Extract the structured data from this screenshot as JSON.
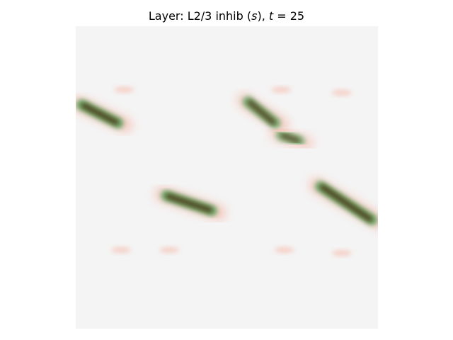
{
  "chart_data": {
    "type": "heatmap",
    "title": {
      "prefix": "Layer: L2/3 inhib (",
      "var": "s",
      "mid": "), ",
      "tvar": "t",
      "eq": " = 25"
    },
    "axes_visible": false,
    "colors": {
      "background": "#f4f4f4",
      "dark_spot": "#4a3210",
      "green_trace": "#2f9a45",
      "green_glow": "#8fd08f",
      "pink_glow": "#f6a08a"
    },
    "vertical_traces": [
      {
        "x": 0.12,
        "y_start": 0.22,
        "y_end": 0.75,
        "intensity": 0.9
      },
      {
        "x": 0.3,
        "y_start": 0.18,
        "y_end": 0.76,
        "intensity": 1.0
      },
      {
        "x": 0.66,
        "y_start": 0.22,
        "y_end": 0.77,
        "intensity": 0.85
      },
      {
        "x": 0.69,
        "y_start": 0.22,
        "y_end": 0.7,
        "intensity": 0.8
      },
      {
        "x": 0.85,
        "y_start": 0.21,
        "y_end": 0.77,
        "intensity": 1.0
      }
    ],
    "diagonal_blobs": [
      {
        "x1": 0.02,
        "y1": 0.26,
        "x2": 0.14,
        "y2": 0.32,
        "intensity": 1.0
      },
      {
        "x1": 0.3,
        "y1": 0.56,
        "x2": 0.45,
        "y2": 0.61,
        "intensity": 1.0
      },
      {
        "x1": 0.57,
        "y1": 0.25,
        "x2": 0.66,
        "y2": 0.32,
        "intensity": 0.9
      },
      {
        "x1": 0.68,
        "y1": 0.36,
        "x2": 0.74,
        "y2": 0.38,
        "intensity": 0.8
      },
      {
        "x1": 0.81,
        "y1": 0.53,
        "x2": 0.98,
        "y2": 0.64,
        "intensity": 1.0
      }
    ],
    "faint_spots": [
      {
        "x": 0.15,
        "y": 0.74
      },
      {
        "x": 0.31,
        "y": 0.74
      },
      {
        "x": 0.69,
        "y": 0.74
      },
      {
        "x": 0.88,
        "y": 0.75
      },
      {
        "x": 0.16,
        "y": 0.21
      },
      {
        "x": 0.68,
        "y": 0.21
      },
      {
        "x": 0.88,
        "y": 0.22
      }
    ]
  }
}
